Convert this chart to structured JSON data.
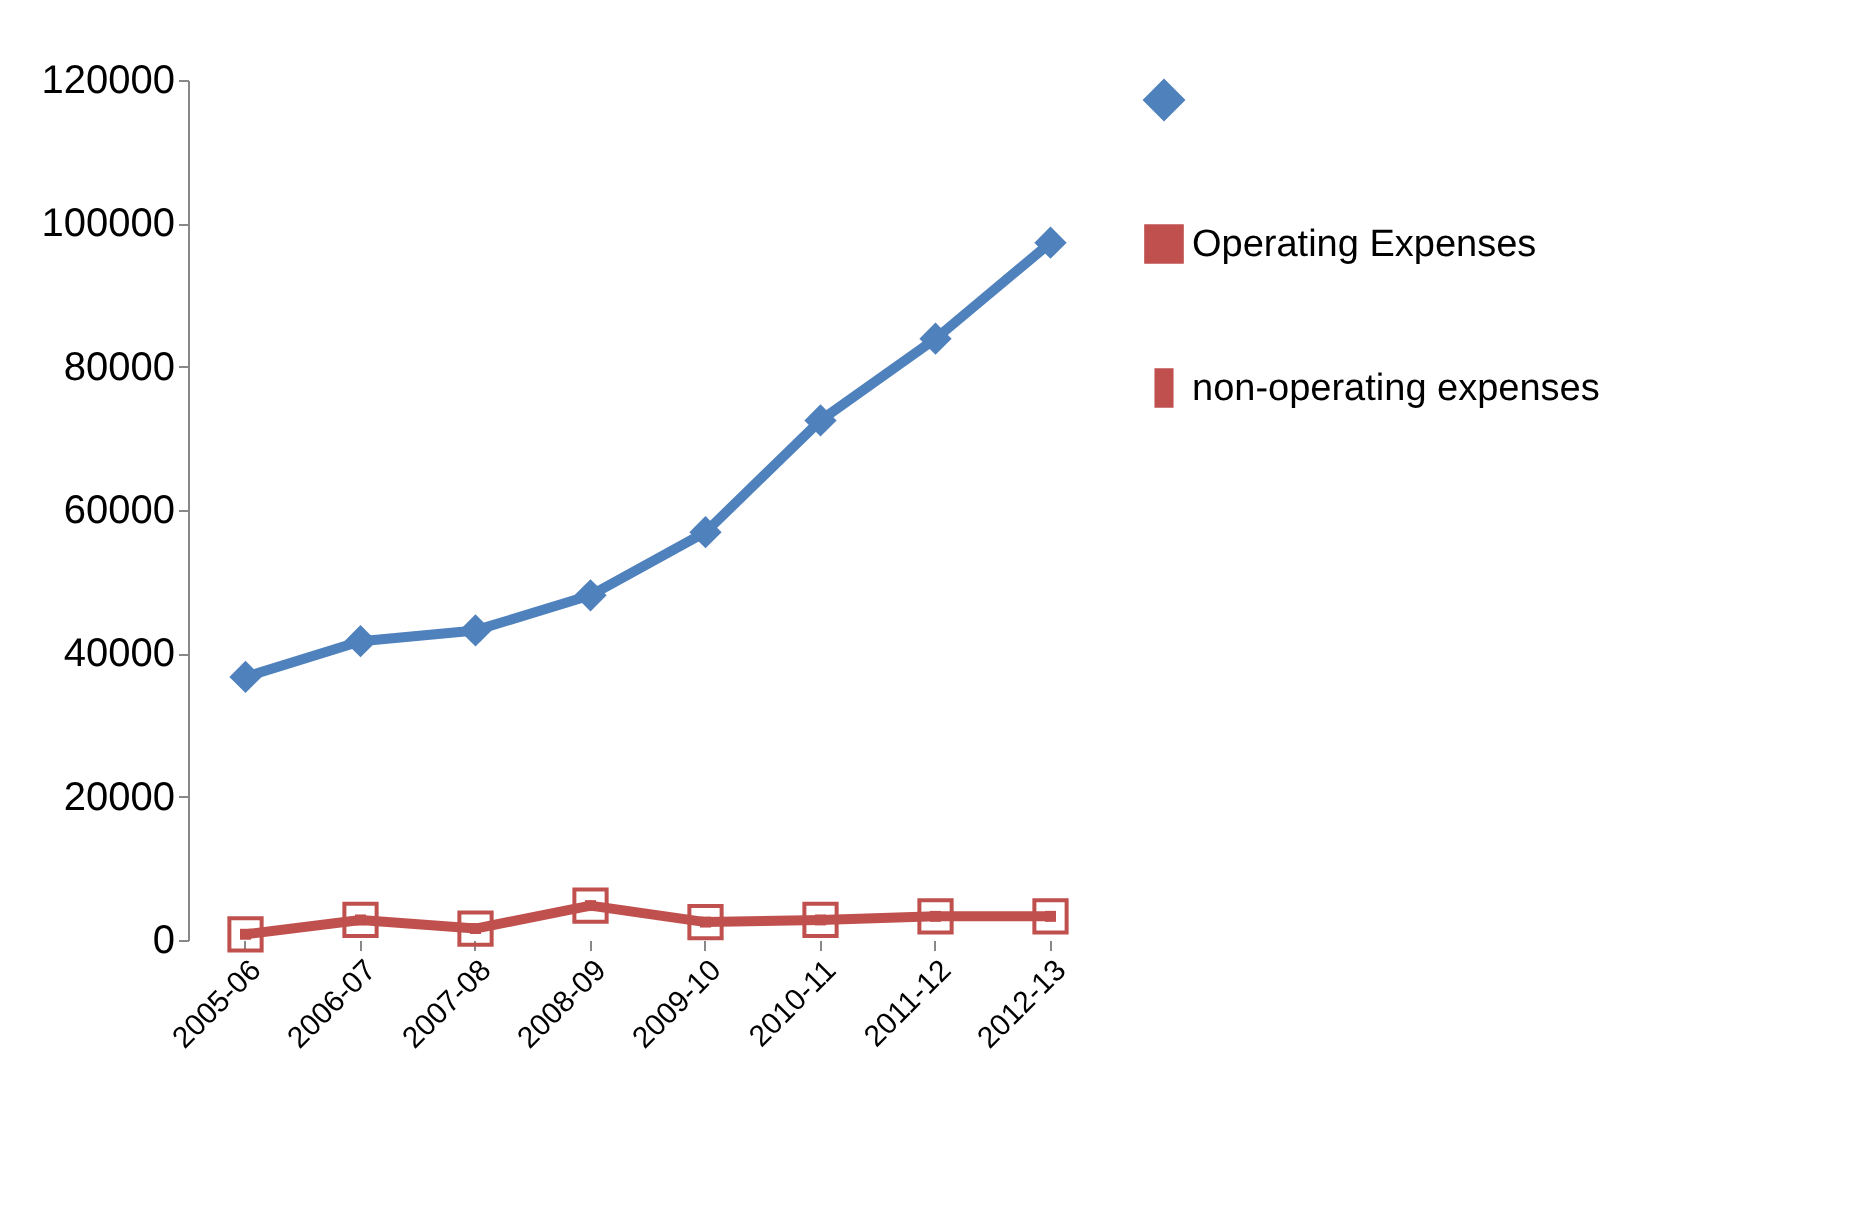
{
  "chart_data": {
    "type": "line",
    "categories": [
      "2005-06",
      "2006-07",
      "2007-08",
      "2008-09",
      "2009-10",
      "2010-11",
      "2011-12",
      "2012-13"
    ],
    "series": [
      {
        "color": "#4f81bd",
        "marker": "diamond",
        "values": [
          36700,
          41700,
          43200,
          48100,
          56900,
          72500,
          83900,
          97300
        ]
      },
      {
        "name": "Operating Expenses",
        "color": "#c0504d",
        "marker": "square",
        "values": [
          800,
          2800,
          1600,
          4800,
          2500,
          2800,
          3300,
          3300
        ]
      },
      {
        "name": "non-operating expenses",
        "type": "bar",
        "color": "#c0504d",
        "values": [
          null,
          null,
          null,
          null,
          null,
          null,
          null,
          null
        ]
      }
    ],
    "ylim": [
      0,
      120000
    ],
    "yticks": [
      0,
      20000,
      40000,
      60000,
      80000,
      100000,
      120000
    ],
    "grid": false,
    "legend": "right"
  }
}
